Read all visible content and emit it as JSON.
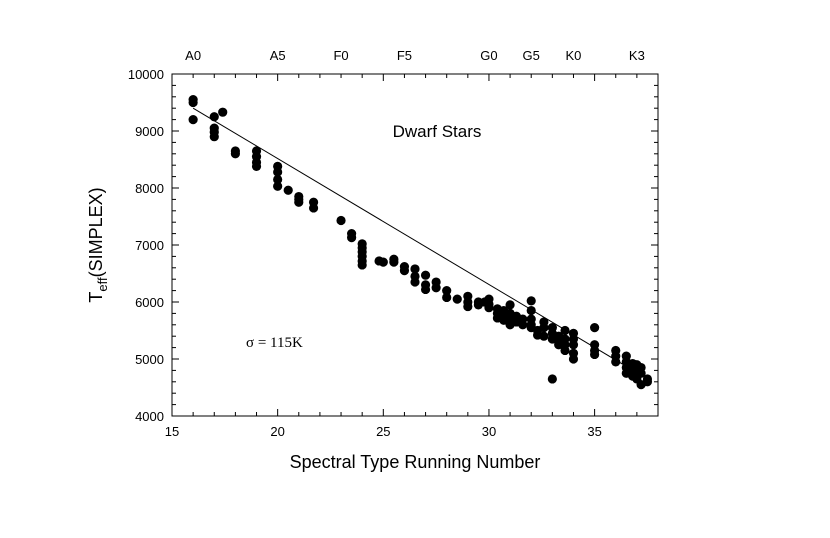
{
  "chart_data": {
    "type": "scatter",
    "title": "",
    "xlabel": "Spectral Type Running Number",
    "ylabel": {
      "base": "T",
      "subscript": "eff",
      "rest": "(SIMPLEX)"
    },
    "xlim": [
      15,
      38
    ],
    "ylim": [
      4000,
      10000
    ],
    "x_ticks": [
      "15",
      "20",
      "25",
      "30",
      "35"
    ],
    "y_ticks": [
      "4000",
      "5000",
      "6000",
      "7000",
      "8000",
      "9000",
      "10000"
    ],
    "top_axis_labels": [
      {
        "label": "A0",
        "x": 16
      },
      {
        "label": "A5",
        "x": 20
      },
      {
        "label": "F0",
        "x": 23
      },
      {
        "label": "F5",
        "x": 26
      },
      {
        "label": "G0",
        "x": 30
      },
      {
        "label": "G5",
        "x": 32
      },
      {
        "label": "K0",
        "x": 34
      },
      {
        "label": "K3",
        "x": 37
      }
    ],
    "annotations": {
      "region_label": "Dwarf Stars",
      "sigma_label": "σ = 115K"
    },
    "fit_line": {
      "x": [
        16,
        37.5
      ],
      "y": [
        9400,
        4650
      ]
    },
    "series": [
      {
        "points": [
          [
            16,
            9550
          ],
          [
            16,
            9500
          ],
          [
            16,
            9200
          ],
          [
            17,
            9250
          ],
          [
            17,
            9050
          ],
          [
            17,
            8980
          ],
          [
            17,
            8900
          ],
          [
            17.4,
            9330
          ],
          [
            18,
            8650
          ],
          [
            18,
            8600
          ],
          [
            19,
            8650
          ],
          [
            19,
            8550
          ],
          [
            19,
            8450
          ],
          [
            19,
            8380
          ],
          [
            20,
            8380
          ],
          [
            20,
            8280
          ],
          [
            20,
            8150
          ],
          [
            20,
            8030
          ],
          [
            20.5,
            7960
          ],
          [
            21,
            7850
          ],
          [
            21,
            7800
          ],
          [
            21,
            7750
          ],
          [
            21.7,
            7750
          ],
          [
            21.7,
            7650
          ],
          [
            23,
            7430
          ],
          [
            23.5,
            7200
          ],
          [
            23.5,
            7130
          ],
          [
            24,
            7020
          ],
          [
            24,
            6950
          ],
          [
            24,
            6880
          ],
          [
            24,
            6800
          ],
          [
            24,
            6720
          ],
          [
            24,
            6650
          ],
          [
            24.8,
            6720
          ],
          [
            25,
            6700
          ],
          [
            25.5,
            6750
          ],
          [
            25.5,
            6700
          ],
          [
            26,
            6620
          ],
          [
            26,
            6550
          ],
          [
            26.5,
            6580
          ],
          [
            26.5,
            6450
          ],
          [
            26.5,
            6350
          ],
          [
            27,
            6470
          ],
          [
            27,
            6300
          ],
          [
            27,
            6220
          ],
          [
            27.5,
            6350
          ],
          [
            27.5,
            6250
          ],
          [
            28,
            6200
          ],
          [
            28,
            6080
          ],
          [
            28.5,
            6050
          ],
          [
            29,
            6100
          ],
          [
            29,
            6000
          ],
          [
            29,
            5920
          ],
          [
            29.5,
            6000
          ],
          [
            29.5,
            5950
          ],
          [
            29.8,
            6000
          ],
          [
            30,
            6050
          ],
          [
            30,
            5960
          ],
          [
            30,
            5900
          ],
          [
            30.4,
            5880
          ],
          [
            30.4,
            5800
          ],
          [
            30.4,
            5720
          ],
          [
            30.7,
            5850
          ],
          [
            30.7,
            5750
          ],
          [
            30.7,
            5680
          ],
          [
            31,
            5950
          ],
          [
            31,
            5800
          ],
          [
            31,
            5700
          ],
          [
            31,
            5600
          ],
          [
            31.3,
            5750
          ],
          [
            31.3,
            5650
          ],
          [
            31.6,
            5700
          ],
          [
            31.6,
            5600
          ],
          [
            32,
            6020
          ],
          [
            32,
            5850
          ],
          [
            32,
            5700
          ],
          [
            32,
            5600
          ],
          [
            32,
            5550
          ],
          [
            32.3,
            5500
          ],
          [
            32.3,
            5420
          ],
          [
            32.6,
            5650
          ],
          [
            32.6,
            5550
          ],
          [
            32.6,
            5400
          ],
          [
            33,
            5550
          ],
          [
            33,
            5450
          ],
          [
            33,
            5350
          ],
          [
            33,
            4650
          ],
          [
            33.3,
            5400
          ],
          [
            33.3,
            5300
          ],
          [
            33.3,
            5250
          ],
          [
            33.6,
            5500
          ],
          [
            33.6,
            5350
          ],
          [
            33.6,
            5250
          ],
          [
            33.6,
            5150
          ],
          [
            34,
            5450
          ],
          [
            34,
            5350
          ],
          [
            34,
            5250
          ],
          [
            34,
            5100
          ],
          [
            34,
            5000
          ],
          [
            35,
            5550
          ],
          [
            35,
            5250
          ],
          [
            35,
            5150
          ],
          [
            35,
            5080
          ],
          [
            36,
            5150
          ],
          [
            36,
            5050
          ],
          [
            36,
            4950
          ],
          [
            36.5,
            5050
          ],
          [
            36.5,
            4950
          ],
          [
            36.5,
            4850
          ],
          [
            36.5,
            4750
          ],
          [
            36.8,
            4920
          ],
          [
            36.8,
            4800
          ],
          [
            36.8,
            4700
          ],
          [
            37,
            4900
          ],
          [
            37,
            4800
          ],
          [
            37,
            4700
          ],
          [
            37,
            4650
          ],
          [
            37.2,
            4850
          ],
          [
            37.2,
            4750
          ],
          [
            37.2,
            4550
          ],
          [
            37.5,
            4650
          ],
          [
            37.5,
            4600
          ]
        ]
      }
    ]
  }
}
